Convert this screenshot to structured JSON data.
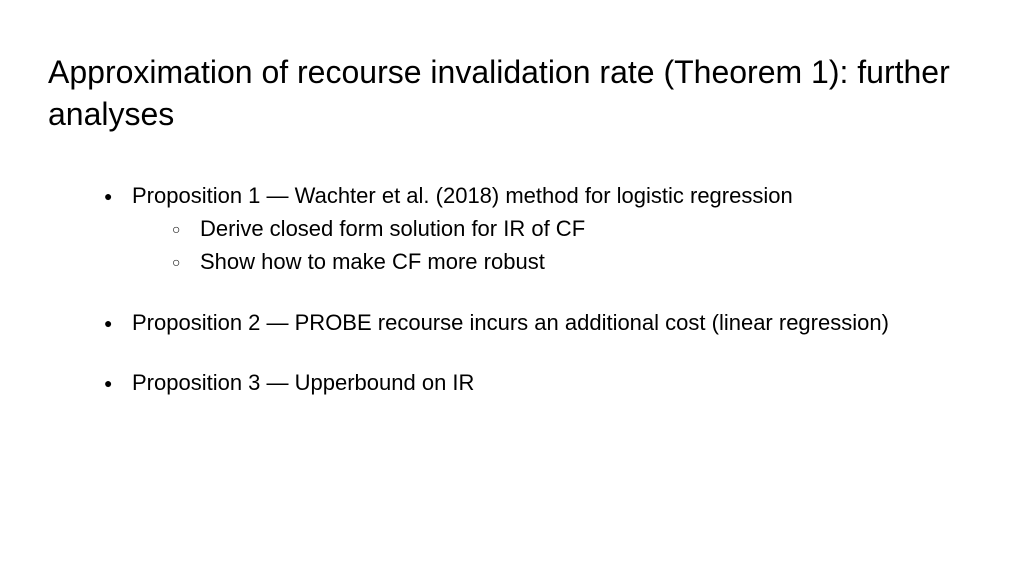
{
  "slide": {
    "title": "Approximation of recourse invalidation rate (Theorem 1): further analyses",
    "bullets": [
      {
        "text": "Proposition 1 — Wachter et al. (2018) method for logistic regression",
        "sub": [
          "Derive closed form solution for IR of CF",
          "Show how to make CF more robust"
        ]
      },
      {
        "text": "Proposition 2 — PROBE recourse incurs an additional cost (linear regression)",
        "sub": []
      },
      {
        "text": "Proposition 3 — Upperbound on IR",
        "sub": []
      }
    ]
  },
  "style": {
    "background_color": "#ffffff",
    "text_color": "#000000",
    "title_fontsize": 32,
    "body_fontsize": 22,
    "font_family": "Arial"
  }
}
